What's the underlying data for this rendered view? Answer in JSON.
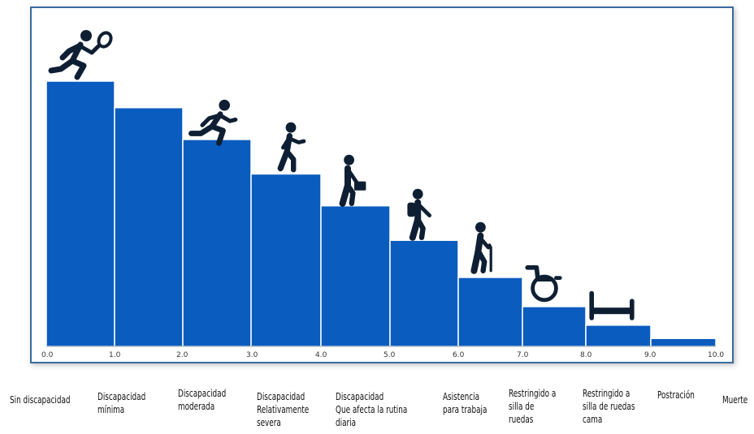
{
  "chart_data": {
    "type": "bar",
    "x_ticks": [
      "0.0",
      "1.0",
      "2.0",
      "3.0",
      "4.0",
      "5.0",
      "6.0",
      "7.0",
      "8.0",
      "9.0",
      "10.0"
    ],
    "categories": [
      "Sin discapacidad",
      "Discapacidad\nmínima",
      "Discapacidad\nmoderada",
      "Discapacidad\nRelativamente\nsevera",
      "Discapacidad\nQue afecta la rutina\ndiaria",
      "Asistencia\npara trabaja",
      "Restringido a\nsilla de\nruedas",
      "Restringido a\nsilla de ruedas\ncama",
      "Postración",
      "Muerte"
    ],
    "values": [
      10,
      9,
      7.8,
      6.5,
      5.3,
      4.0,
      2.6,
      1.5,
      0.8,
      0.3
    ],
    "bar_color": "#0b5cbf",
    "icons": [
      "runner-racket-icon",
      "runner-icon",
      "walker-icon",
      "briefcase-walker-icon",
      "backpack-walker-icon",
      "cane-elder-icon",
      "wheelchair-icon",
      "bed-icon"
    ]
  }
}
